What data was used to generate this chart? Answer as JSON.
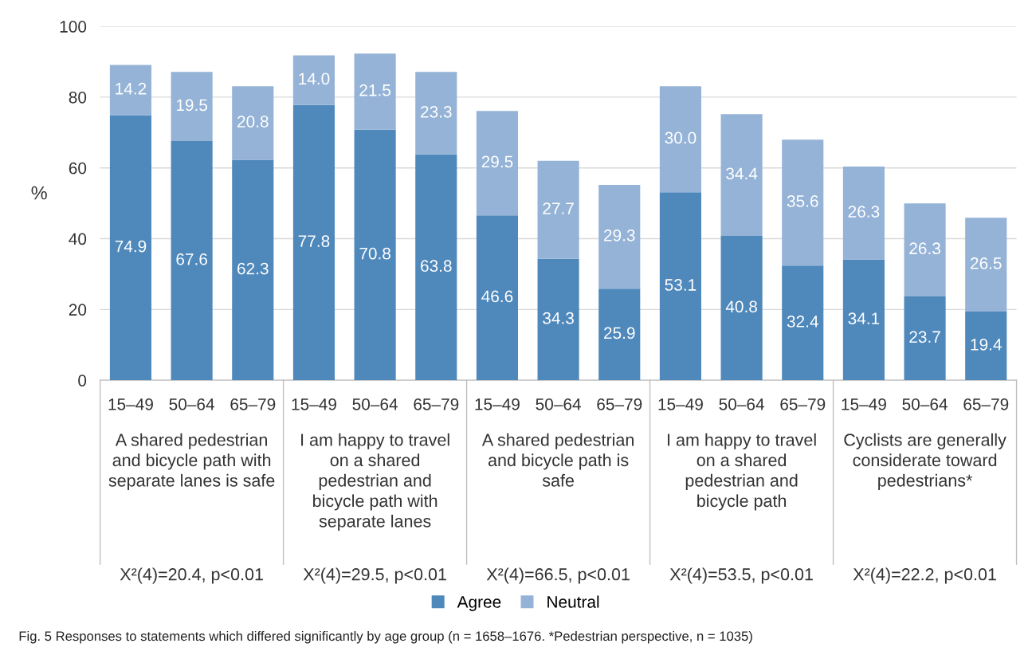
{
  "chart_data": {
    "type": "bar",
    "stacked": true,
    "ylabel": "%",
    "ylim": [
      0,
      100
    ],
    "yticks": [
      0,
      20,
      40,
      60,
      80,
      100
    ],
    "grid": "y",
    "legend": "bottom",
    "categories": [
      "15–49",
      "50–64",
      "65–79",
      "15–49",
      "50–64",
      "65–79",
      "15–49",
      "50–64",
      "65–79",
      "15–49",
      "50–64",
      "65–79",
      "15–49",
      "50–64",
      "65–79"
    ],
    "series": [
      {
        "name": "Agree",
        "color": "#4f88bb",
        "values": [
          74.9,
          67.6,
          62.3,
          77.8,
          70.8,
          63.8,
          46.6,
          34.3,
          25.9,
          53.1,
          40.8,
          32.4,
          34.1,
          23.7,
          19.4
        ],
        "value_labels": [
          "74.9",
          "67.6",
          "62.3",
          "77.8",
          "70.8",
          "63.8",
          "46.6",
          "34.3",
          "25.9",
          "53.1",
          "40.8",
          "32.4",
          "34.1",
          "23.7",
          "19.4"
        ]
      },
      {
        "name": "Neutral",
        "color": "#95b3d7",
        "values": [
          14.2,
          19.5,
          20.8,
          14.0,
          21.5,
          23.3,
          29.5,
          27.7,
          29.3,
          30.0,
          34.4,
          35.6,
          26.3,
          26.3,
          26.5
        ],
        "value_labels": [
          "14.2",
          "19.5",
          "20.8",
          "14.0",
          "21.5",
          "23.3",
          "29.5",
          "27.7",
          "29.3",
          "30.0",
          "34.4",
          "35.6",
          "26.3",
          "26.3",
          "26.5"
        ]
      }
    ],
    "annotations": [
      "A shared pedestrian\nand bicycle path with\nseparate lanes is safe",
      "I am happy to travel\non a shared\npedestrian and\nbicycle path with\nseparate lanes",
      "A shared pedestrian\nand bicycle path is\nsafe",
      "I am happy to travel\non a shared\npedestrian and\nbicycle path",
      "Cyclists are generally\nconsiderate toward\npedestrians*",
      "X²(4)=20.4, p<0.01",
      "X²(4)=29.5, p<0.01",
      "X²(4)=66.5, p<0.01",
      "X²(4)=53.5, p<0.01",
      "X²(4)=22.2, p<0.01",
      "Fig. 5 Responses to statements which differed significantly by age group (n = 1658–1676. *Pedestrian perspective, n = 1035)"
    ]
  }
}
